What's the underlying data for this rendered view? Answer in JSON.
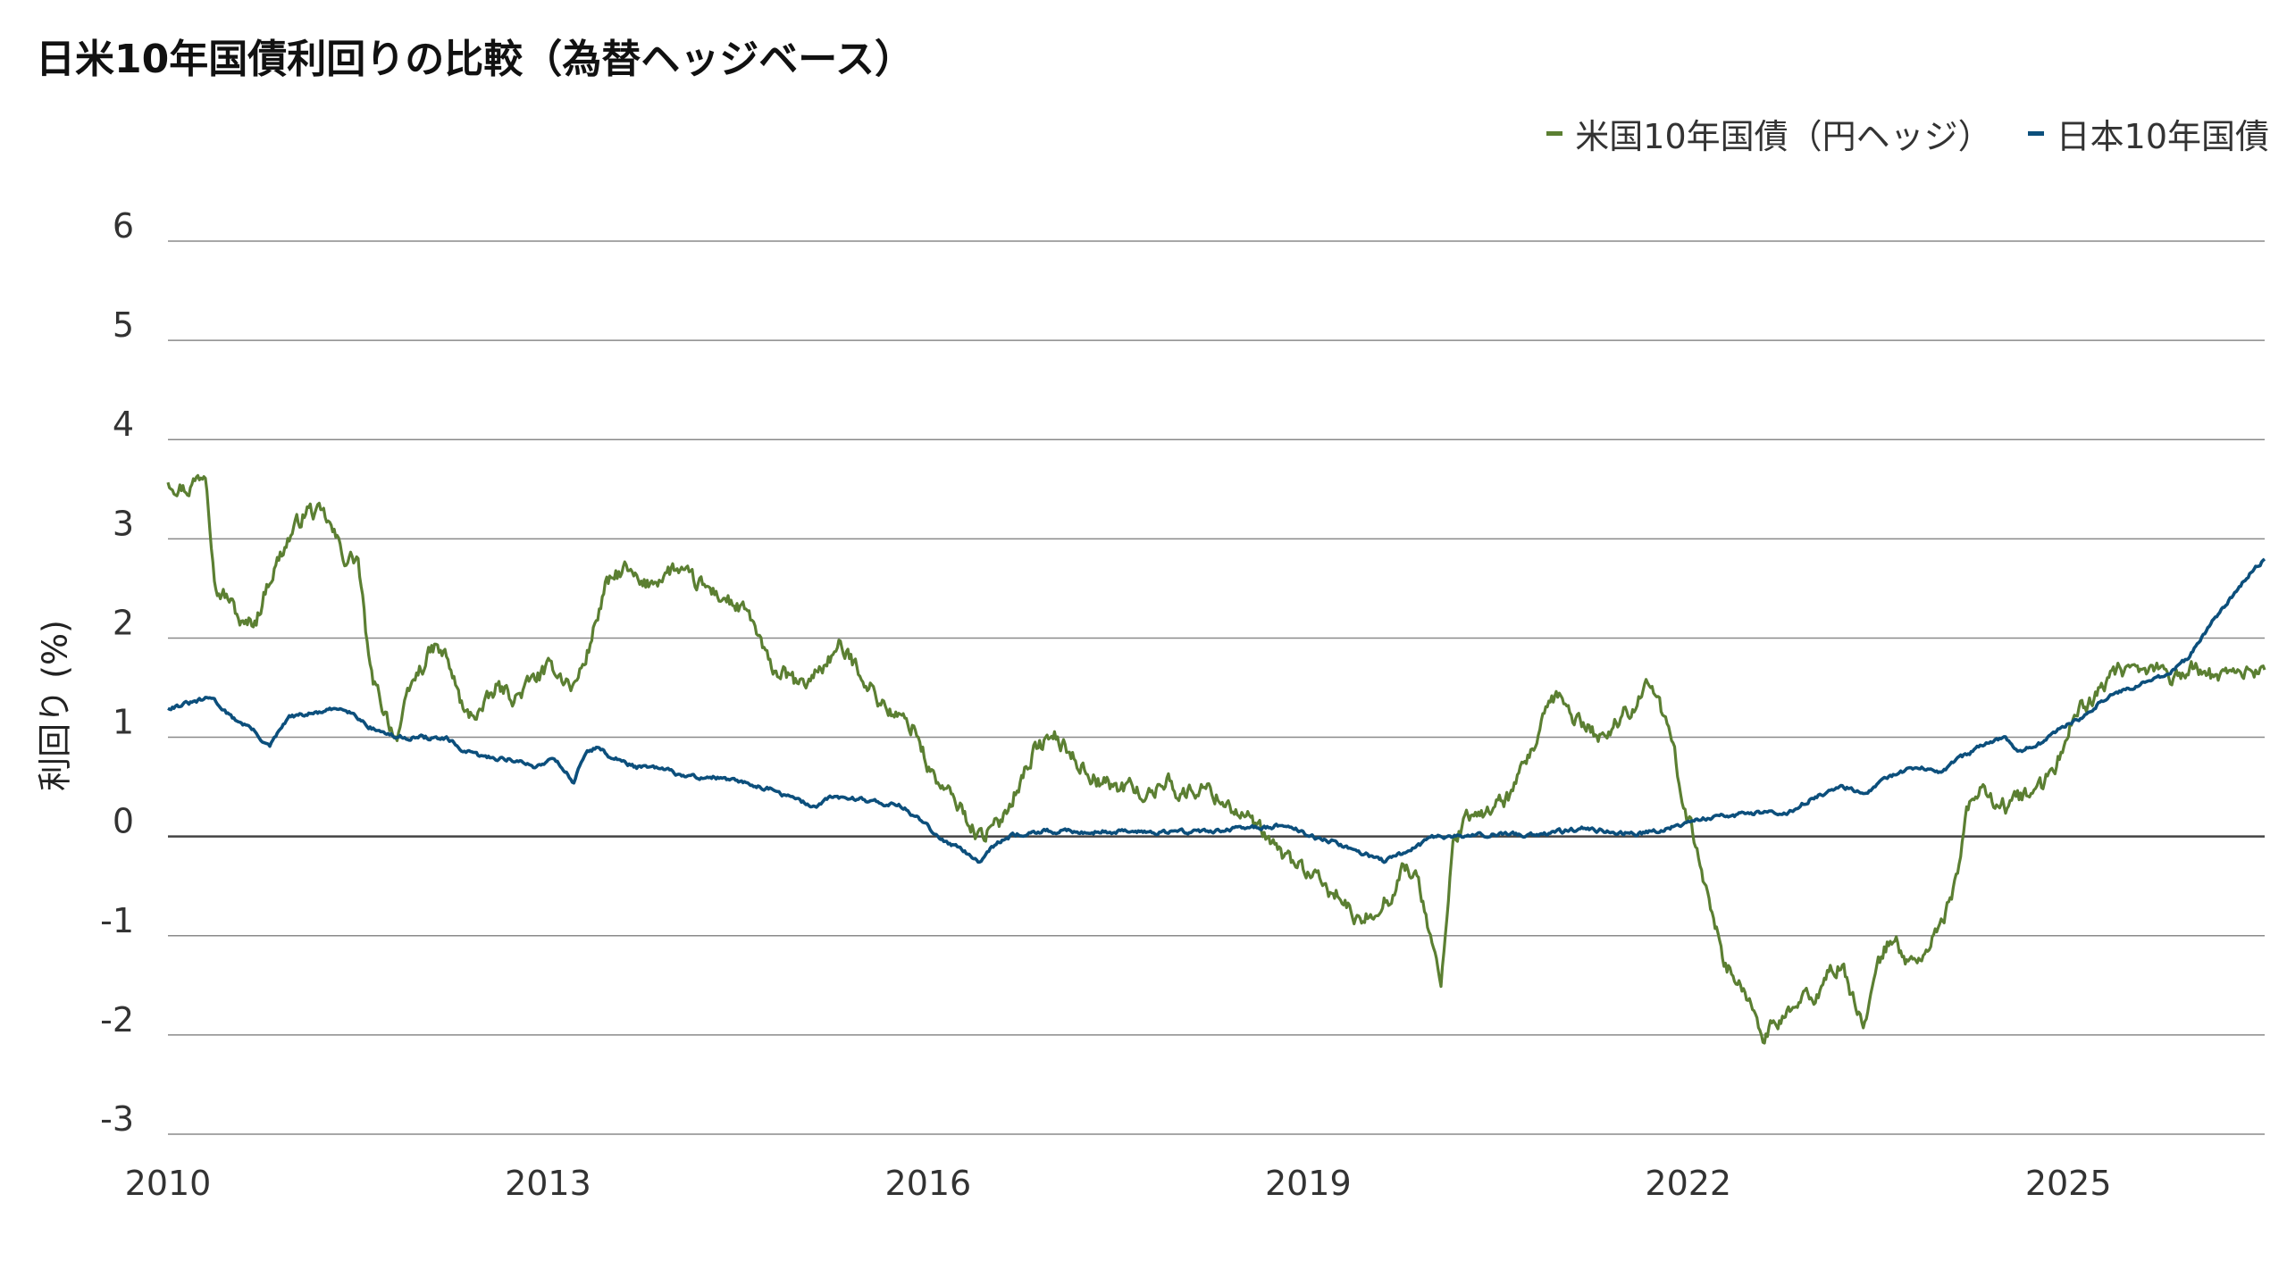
{
  "chart_data": {
    "type": "line",
    "title": "日米10年国債利回りの比較（為替ヘッジベース）",
    "ylabel": "利回り (%)",
    "xlabel": "",
    "ylim": [
      -3,
      6
    ],
    "xlim": [
      2010,
      2026.55
    ],
    "yticks": [
      "6",
      "5",
      "4",
      "3",
      "2",
      "1",
      "0",
      "-1",
      "-2",
      "-3"
    ],
    "xticks": [
      "2010",
      "2013",
      "2016",
      "2019",
      "2022",
      "2025"
    ],
    "legend_position": "top-right",
    "grid": true,
    "series": [
      {
        "name": "米国10年国債（円ヘッジ）",
        "color": "#5b7f32",
        "x": [
          2010.0,
          2010.15,
          2010.3,
          2010.38,
          2010.48,
          2010.6,
          2010.7,
          2010.8,
          2010.95,
          2011.1,
          2011.25,
          2011.4,
          2011.5,
          2011.6,
          2011.7,
          2011.8,
          2011.95,
          2012.1,
          2012.2,
          2012.35,
          2012.5,
          2012.6,
          2012.75,
          2012.9,
          2013.05,
          2013.2,
          2013.3,
          2013.45,
          2013.6,
          2013.75,
          2013.85,
          2014.0,
          2014.1,
          2014.25,
          2014.4,
          2014.5,
          2014.6,
          2014.75,
          2014.9,
          2015.0,
          2015.15,
          2015.3,
          2015.45,
          2015.6,
          2015.75,
          2015.9,
          2016.0,
          2016.1,
          2016.25,
          2016.4,
          2016.55,
          2016.7,
          2016.85,
          2017.0,
          2017.15,
          2017.3,
          2017.45,
          2017.6,
          2017.75,
          2017.9,
          2018.0,
          2018.15,
          2018.3,
          2018.5,
          2018.65,
          2018.8,
          2018.95,
          2019.1,
          2019.25,
          2019.4,
          2019.55,
          2019.65,
          2019.75,
          2019.85,
          2019.95,
          2020.05,
          2020.15,
          2020.22,
          2020.28,
          2020.35,
          2020.45,
          2020.6,
          2020.75,
          2020.9,
          2021.0,
          2021.1,
          2021.2,
          2021.3,
          2021.4,
          2021.55,
          2021.7,
          2021.85,
          2022.0,
          2022.1,
          2022.2,
          2022.3,
          2022.4,
          2022.5,
          2022.6,
          2022.7,
          2022.85,
          2023.0,
          2023.1,
          2023.2,
          2023.3,
          2023.4,
          2023.5,
          2023.6,
          2023.7,
          2023.8,
          2023.9,
          2024.0,
          2024.1,
          2024.2,
          2024.3,
          2024.4,
          2024.5,
          2024.6,
          2024.7,
          2024.8,
          2024.9,
          2025.0,
          2025.1,
          2025.2,
          2025.3,
          2025.4,
          2025.5,
          2025.6,
          2025.7,
          2025.8,
          2025.9,
          2026.0,
          2026.1,
          2026.2,
          2026.3,
          2026.4,
          2026.55
        ],
        "y": [
          3.6,
          3.5,
          3.7,
          2.5,
          2.4,
          2.1,
          2.2,
          2.6,
          3.0,
          3.3,
          3.2,
          2.8,
          2.8,
          1.6,
          1.3,
          1.0,
          1.6,
          1.9,
          1.8,
          1.2,
          1.3,
          1.5,
          1.4,
          1.6,
          1.7,
          1.5,
          1.8,
          2.5,
          2.7,
          2.5,
          2.6,
          2.7,
          2.6,
          2.5,
          2.4,
          2.3,
          2.2,
          1.7,
          1.6,
          1.5,
          1.7,
          1.9,
          1.7,
          1.4,
          1.2,
          1.1,
          0.7,
          0.5,
          0.3,
          0.0,
          0.1,
          0.5,
          0.9,
          1.0,
          0.8,
          0.6,
          0.5,
          0.5,
          0.4,
          0.6,
          0.4,
          0.5,
          0.4,
          0.2,
          0.0,
          -0.2,
          -0.3,
          -0.5,
          -0.6,
          -0.9,
          -0.7,
          -0.6,
          -0.3,
          -0.4,
          -0.9,
          -1.5,
          0.0,
          0.1,
          0.2,
          0.2,
          0.3,
          0.4,
          0.8,
          1.3,
          1.4,
          1.2,
          1.1,
          1.0,
          1.1,
          1.3,
          1.6,
          1.0,
          0.2,
          -0.3,
          -0.8,
          -1.3,
          -1.5,
          -1.7,
          -2.0,
          -1.9,
          -1.7,
          -1.6,
          -1.4,
          -1.3,
          -1.6,
          -1.9,
          -1.3,
          -1.0,
          -1.2,
          -1.3,
          -1.1,
          -0.9,
          -0.5,
          0.2,
          0.5,
          0.4,
          0.3,
          0.4,
          0.4,
          0.5,
          0.7,
          1.1,
          1.3,
          1.4,
          1.5,
          1.7,
          1.6,
          1.65,
          1.7,
          1.6,
          1.65,
          1.7,
          1.6,
          1.65,
          1.7,
          1.65,
          1.7
        ],
        "_unused": null
      },
      {
        "name": "日本10年国債",
        "color": "#0c4f7c",
        "x": [
          2010.0,
          2010.2,
          2010.35,
          2010.5,
          2010.65,
          2010.8,
          2010.95,
          2011.2,
          2011.4,
          2011.6,
          2011.8,
          2012.0,
          2012.2,
          2012.35,
          2012.5,
          2012.7,
          2012.9,
          2013.05,
          2013.2,
          2013.3,
          2013.38,
          2013.5,
          2013.7,
          2013.9,
          2014.1,
          2014.3,
          2014.5,
          2014.7,
          2014.9,
          2015.1,
          2015.25,
          2015.45,
          2015.6,
          2015.8,
          2016.0,
          2016.1,
          2016.25,
          2016.4,
          2016.5,
          2016.65,
          2016.8,
          2016.9,
          2017.1,
          2017.3,
          2017.5,
          2017.7,
          2017.9,
          2018.1,
          2018.3,
          2018.5,
          2018.7,
          2018.85,
          2019.0,
          2019.2,
          2019.4,
          2019.6,
          2019.7,
          2019.85,
          2020.0,
          2020.2,
          2020.4,
          2020.6,
          2020.8,
          2021.0,
          2021.2,
          2021.4,
          2021.6,
          2021.8,
          2022.0,
          2022.2,
          2022.4,
          2022.6,
          2022.8,
          2023.0,
          2023.2,
          2023.4,
          2023.6,
          2023.8,
          2024.0,
          2024.1,
          2024.3,
          2024.5,
          2024.6,
          2024.8,
          2024.95,
          2025.1,
          2025.25,
          2025.4,
          2025.6,
          2025.8,
          2025.95,
          2026.1,
          2026.25,
          2026.4,
          2026.55
        ],
        "y": [
          1.3,
          1.35,
          1.4,
          1.2,
          1.1,
          0.9,
          1.2,
          1.25,
          1.3,
          1.1,
          1.0,
          1.0,
          0.98,
          0.85,
          0.8,
          0.78,
          0.7,
          0.8,
          0.55,
          0.85,
          0.9,
          0.8,
          0.7,
          0.68,
          0.6,
          0.6,
          0.55,
          0.5,
          0.4,
          0.3,
          0.4,
          0.38,
          0.35,
          0.3,
          0.1,
          -0.05,
          -0.1,
          -0.25,
          -0.1,
          0.0,
          0.05,
          0.05,
          0.05,
          0.05,
          0.05,
          0.05,
          0.05,
          0.05,
          0.06,
          0.08,
          0.1,
          0.12,
          0.0,
          -0.05,
          -0.15,
          -0.25,
          -0.2,
          -0.1,
          0.0,
          0.0,
          0.02,
          0.02,
          0.02,
          0.05,
          0.08,
          0.05,
          0.03,
          0.07,
          0.15,
          0.2,
          0.22,
          0.25,
          0.25,
          0.4,
          0.5,
          0.45,
          0.6,
          0.7,
          0.65,
          0.75,
          0.9,
          1.0,
          0.85,
          0.95,
          1.1,
          1.2,
          1.35,
          1.45,
          1.55,
          1.65,
          1.8,
          2.1,
          2.35,
          2.6,
          2.8
        ]
      }
    ]
  },
  "legend": {
    "us_label": "米国10年国債（円ヘッジ）",
    "jp_label": "日本10年国債"
  }
}
